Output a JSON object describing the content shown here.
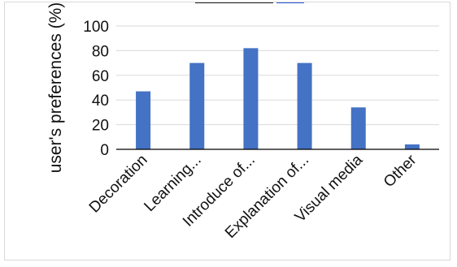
{
  "chart_data": {
    "type": "bar",
    "title": "",
    "xlabel": "",
    "ylabel": "user's preferences  (%)",
    "ylim": [
      0,
      100
    ],
    "yticks": [
      0,
      20,
      40,
      60,
      80,
      100
    ],
    "grid": true,
    "legend": "none",
    "categories": [
      "Decoration",
      "Learning...",
      "Introduce of...",
      "Explanation of...",
      "Visual media",
      "Other"
    ],
    "values": [
      47,
      70,
      82,
      70,
      34,
      4
    ],
    "colors": {
      "bar": "#4472c4",
      "grid": "#d9d9d9",
      "axis": "#000000"
    }
  }
}
